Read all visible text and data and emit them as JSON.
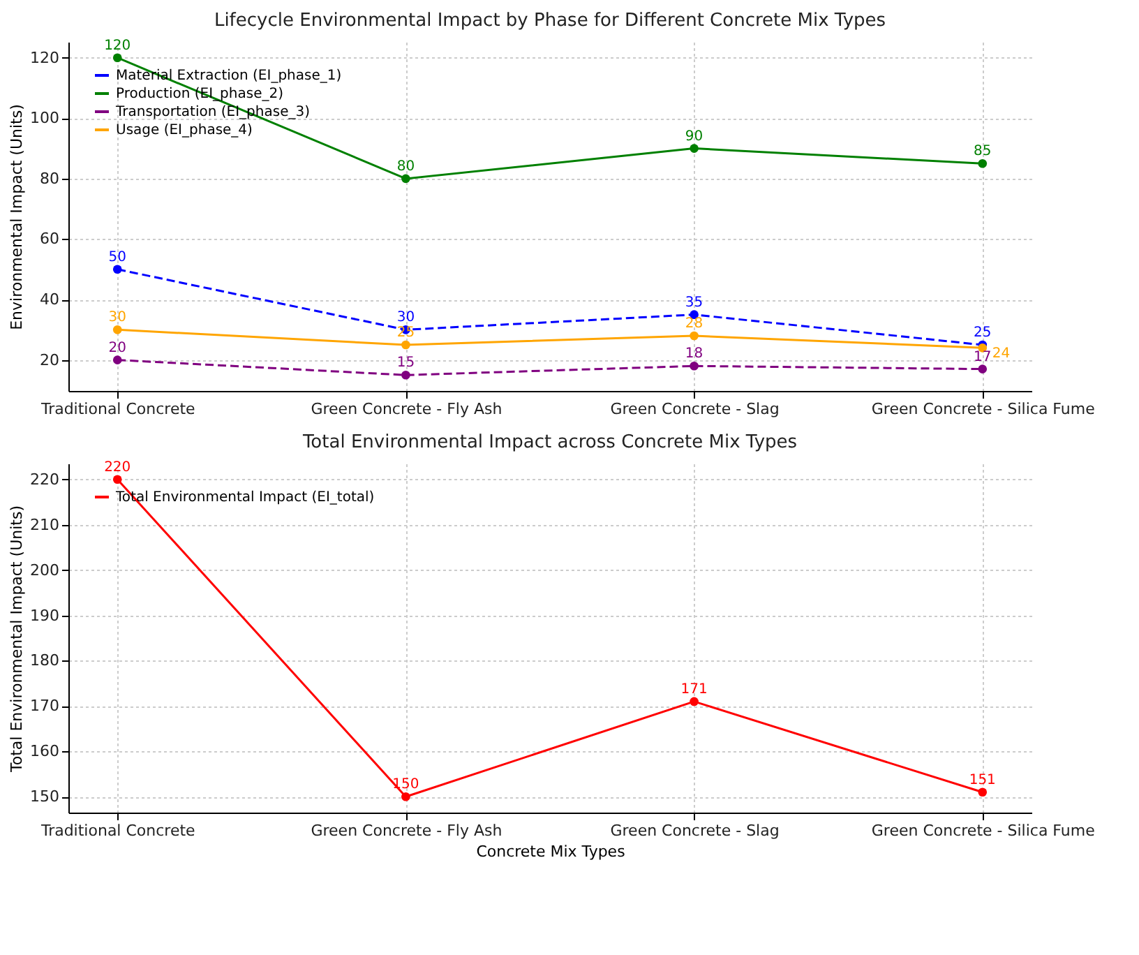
{
  "chart_data": [
    {
      "type": "line",
      "title": "Lifecycle Environmental Impact by Phase for Different Concrete Mix Types",
      "ylabel": "Environmental Impact (Units)",
      "categories": [
        "Traditional Concrete",
        "Green Concrete - Fly Ash",
        "Green Concrete - Slag",
        "Green Concrete - Silica Fume"
      ],
      "series": [
        {
          "name": "Material Extraction (EI_phase_1)",
          "color": "#0000ff",
          "values": [
            50,
            30,
            35,
            25
          ],
          "line_style": "dashed"
        },
        {
          "name": "Production (EI_phase_2)",
          "color": "#008000",
          "values": [
            120,
            80,
            90,
            85
          ],
          "line_style": "solid"
        },
        {
          "name": "Transportation (EI_phase_3)",
          "color": "#800080",
          "values": [
            20,
            15,
            18,
            17
          ],
          "line_style": "dashed"
        },
        {
          "name": "Usage (EI_phase_4)",
          "color": "#ffa500",
          "values": [
            30,
            25,
            28,
            24
          ],
          "line_style": "solid"
        }
      ],
      "ylim": [
        9.75,
        125.25
      ],
      "yticks": [
        20,
        40,
        60,
        80,
        100,
        120
      ],
      "grid": true,
      "legend": "top left",
      "marker": "circle",
      "data_labels": true
    },
    {
      "type": "line",
      "title": "Total Environmental Impact across Concrete Mix Types",
      "xlabel": "Concrete Mix Types",
      "ylabel": "Total Environmental Impact (Units)",
      "categories": [
        "Traditional Concrete",
        "Green Concrete - Fly Ash",
        "Green Concrete - Slag",
        "Green Concrete - Silica Fume"
      ],
      "series": [
        {
          "name": "Total Environmental Impact (EI_total)",
          "color": "#ff0000",
          "values": [
            220,
            150,
            171,
            151
          ],
          "line_style": "solid"
        }
      ],
      "ylim": [
        146.5,
        223.5
      ],
      "yticks": [
        150,
        160,
        170,
        180,
        190,
        200,
        210,
        220
      ],
      "grid": true,
      "legend": "top left",
      "marker": "circle",
      "data_labels": true
    }
  ]
}
